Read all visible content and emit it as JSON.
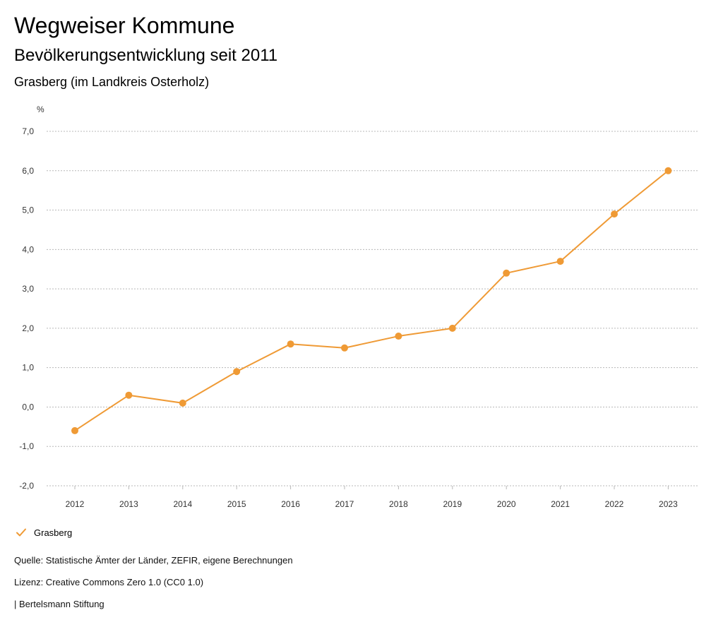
{
  "header": {
    "title": "Wegweiser Kommune",
    "subtitle": "Bevölkerungsentwicklung seit 2011",
    "region": "Grasberg (im Landkreis Osterholz)"
  },
  "chart_data": {
    "type": "line",
    "title": "Bevölkerungsentwicklung seit 2011",
    "xlabel": "",
    "ylabel": "%",
    "x": [
      "2012",
      "2013",
      "2014",
      "2015",
      "2016",
      "2017",
      "2018",
      "2019",
      "2020",
      "2021",
      "2022",
      "2023"
    ],
    "series": [
      {
        "name": "Grasberg",
        "color": "#ef9a35",
        "values": [
          -0.6,
          0.3,
          0.1,
          0.9,
          1.6,
          1.5,
          1.8,
          2.0,
          3.4,
          3.7,
          4.9,
          6.0
        ]
      }
    ],
    "ylim": [
      -2.0,
      7.0
    ],
    "yticks": [
      7.0,
      6.0,
      5.0,
      4.0,
      3.0,
      2.0,
      1.0,
      0.0,
      -1.0,
      -2.0
    ],
    "ytick_labels": [
      "7,0",
      "6,0",
      "5,0",
      "4,0",
      "3,0",
      "2,0",
      "1,0",
      "0,0",
      "-1,0",
      "-2,0"
    ],
    "grid": true,
    "legend": "bottom-left"
  },
  "legend": {
    "label": "Grasberg",
    "icon": "check-icon",
    "color": "#ef9a35"
  },
  "footer": {
    "source": "Quelle: Statistische Ämter der Länder, ZEFIR, eigene Berechnungen",
    "license": "Lizenz: Creative Commons Zero 1.0 (CC0 1.0)",
    "publisher": "| Bertelsmann Stiftung"
  }
}
